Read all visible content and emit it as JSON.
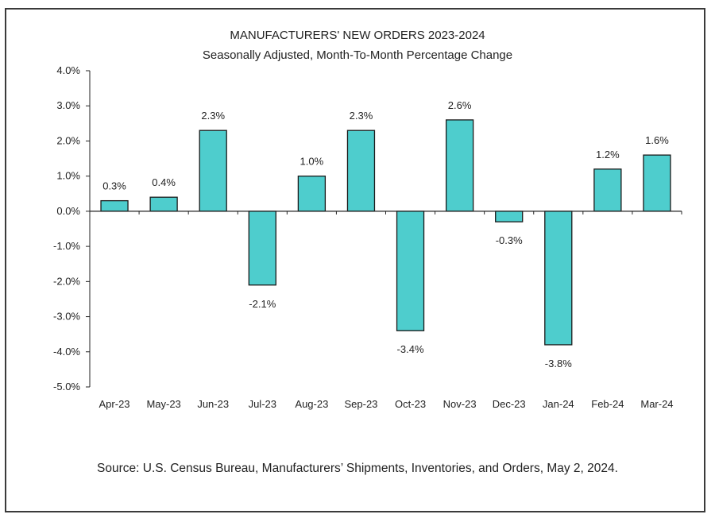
{
  "chart_data": {
    "type": "bar",
    "title": "MANUFACTURERS' NEW ORDERS 2023-2024",
    "subtitle": "Seasonally Adjusted,  Month-To-Month Percentage Change",
    "categories": [
      "Apr-23",
      "May-23",
      "Jun-23",
      "Jul-23",
      "Aug-23",
      "Sep-23",
      "Oct-23",
      "Nov-23",
      "Dec-23",
      "Jan-24",
      "Feb-24",
      "Mar-24"
    ],
    "values": [
      0.3,
      0.4,
      2.3,
      -2.1,
      1.0,
      2.3,
      -3.4,
      2.6,
      -0.3,
      -3.8,
      1.2,
      1.6
    ],
    "value_labels": [
      "0.3%",
      "0.4%",
      "2.3%",
      "-2.1%",
      "1.0%",
      "2.3%",
      "-3.4%",
      "2.6%",
      "-0.3%",
      "-3.8%",
      "1.2%",
      "1.6%"
    ],
    "y_ticks": [
      4,
      3,
      2,
      1,
      0,
      -1,
      -2,
      -3,
      -4,
      -5
    ],
    "y_tick_labels": [
      "4.0%",
      "3.0%",
      "2.0%",
      "1.0%",
      "0.0%",
      "-1.0%",
      "-2.0%",
      "-3.0%",
      "-4.0%",
      "-5.0%"
    ],
    "ylim": [
      -5,
      4
    ],
    "xlabel": "",
    "ylabel": "",
    "grid": false,
    "bar_color": "#4ECDCD",
    "bar_edge_color": "#1a1a1a"
  },
  "source": "Source: U.S. Census Bureau, Manufacturers’ Shipments, Inventories, and Orders, May 2, 2024."
}
